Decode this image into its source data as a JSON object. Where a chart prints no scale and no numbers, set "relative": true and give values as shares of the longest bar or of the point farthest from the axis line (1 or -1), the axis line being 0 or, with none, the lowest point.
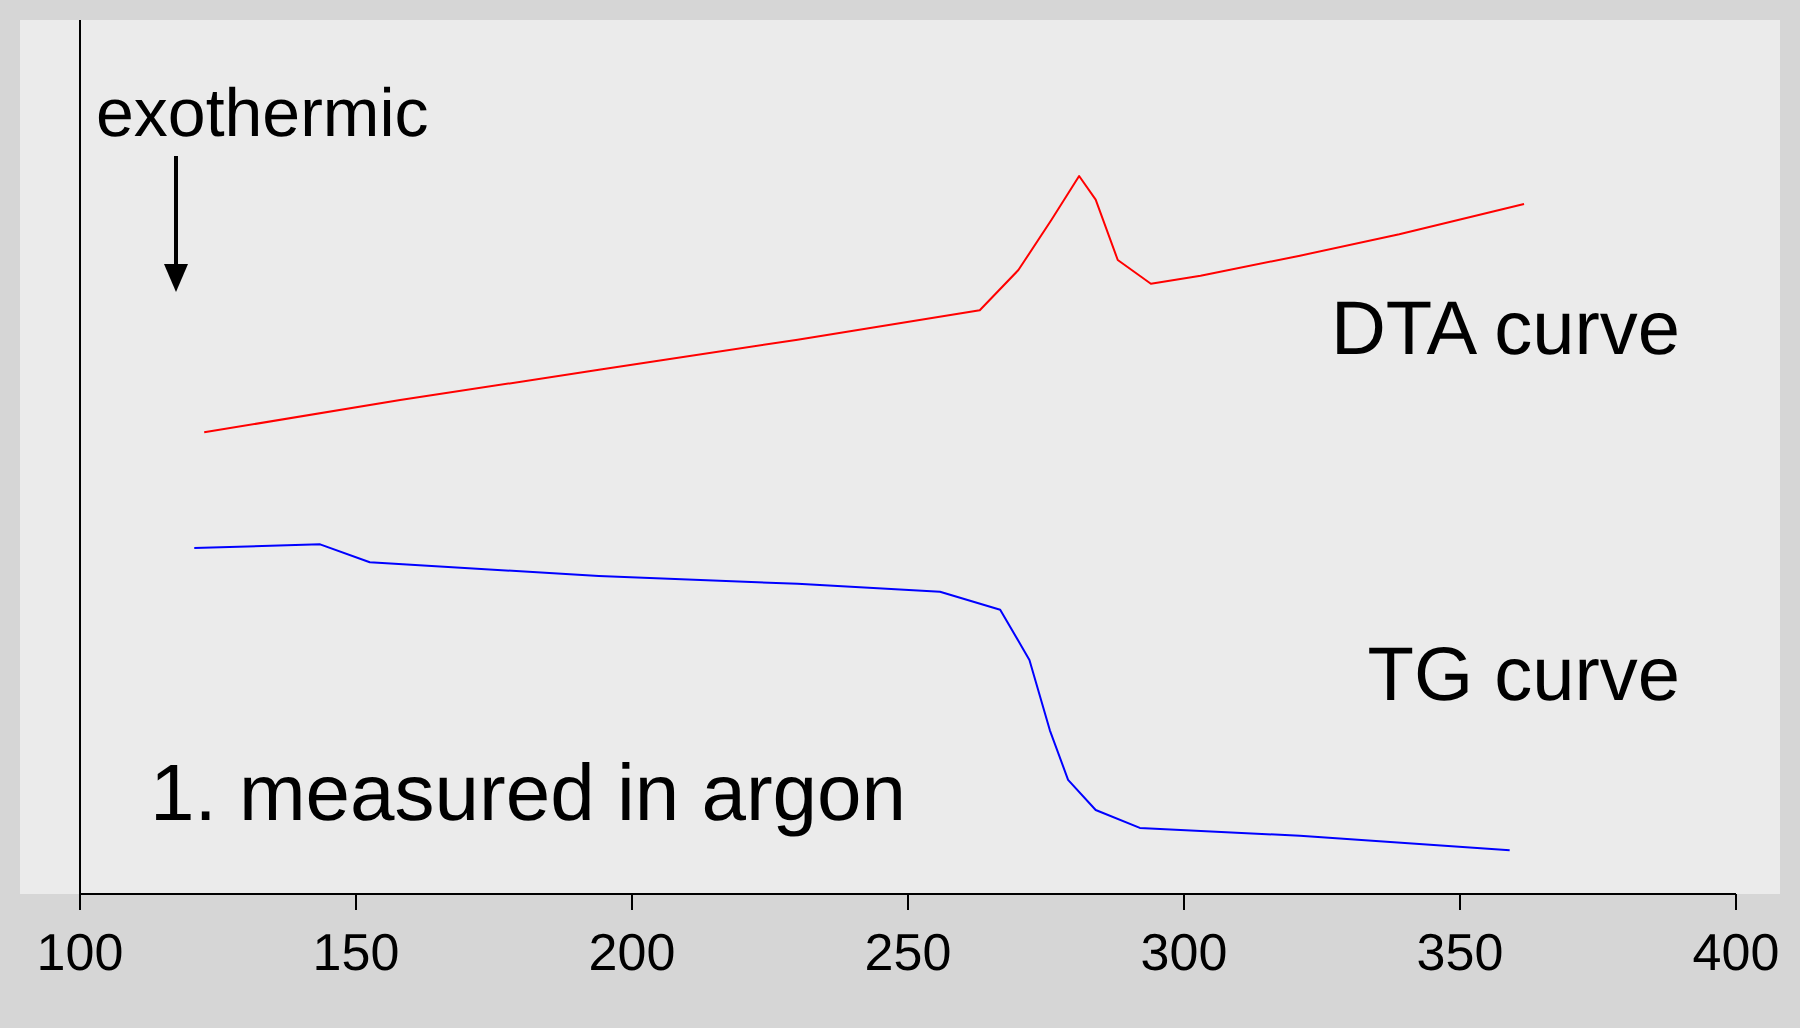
{
  "chart_data": {
    "type": "line",
    "relative": true,
    "xlim": [
      100,
      400
    ],
    "xticks": [
      100,
      150,
      200,
      250,
      300,
      350,
      400
    ],
    "grid": false,
    "annotations": [
      "exothermic",
      "1. measured in argon"
    ],
    "series": [
      {
        "name": "DTA curve",
        "color": "#ff0000",
        "x": [
          122.5,
          158,
          194,
          230,
          263,
          270,
          276,
          281,
          284,
          288,
          294,
          303,
          321,
          339,
          361.6
        ],
        "values": [
          0.643,
          0.688,
          0.73,
          0.772,
          0.813,
          0.869,
          0.939,
          1.0,
          0.967,
          0.883,
          0.85,
          0.861,
          0.889,
          0.919,
          0.961
        ]
      },
      {
        "name": "TG curve",
        "color": "#0000ff",
        "x": [
          120.7,
          143.5,
          152.5,
          194,
          230,
          255.8,
          266.7,
          272,
          275.7,
          279,
          284,
          292,
          321,
          359
        ],
        "values": [
          0.482,
          0.487,
          0.462,
          0.443,
          0.432,
          0.421,
          0.396,
          0.326,
          0.228,
          0.159,
          0.117,
          0.092,
          0.081,
          0.061
        ]
      }
    ]
  }
}
